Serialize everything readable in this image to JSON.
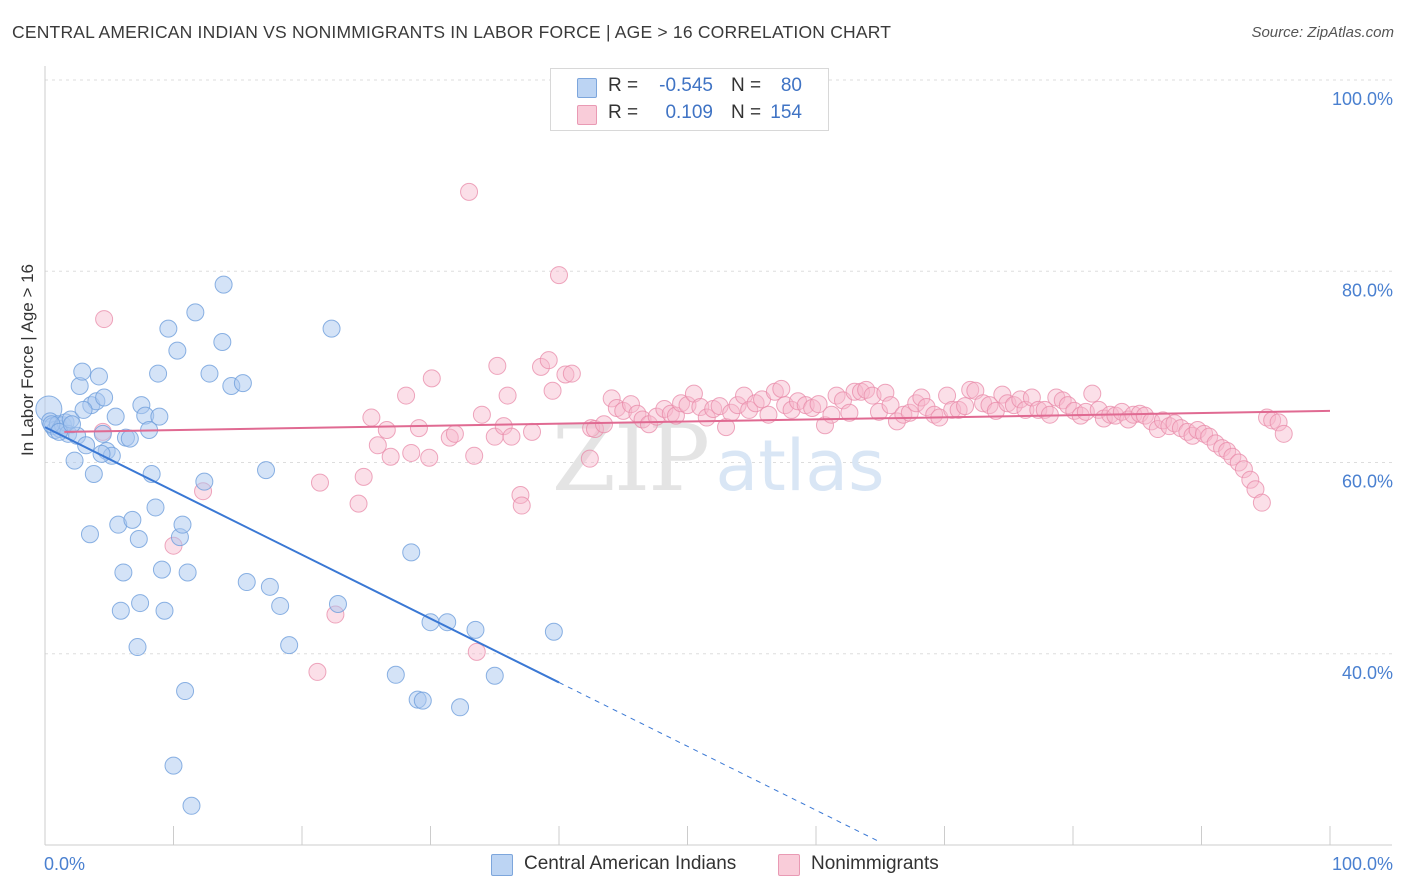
{
  "header": {
    "title": "CENTRAL AMERICAN INDIAN VS NONIMMIGRANTS IN LABOR FORCE | AGE > 16 CORRELATION CHART",
    "source": "Source: ZipAtlas.com"
  },
  "legend": {
    "rows": [
      {
        "r_label": "R =",
        "r_value": "-0.545",
        "n_label": "N =",
        "n_value": "80"
      },
      {
        "r_label": "R =",
        "r_value": "0.109",
        "n_label": "N =",
        "n_value": "154"
      }
    ]
  },
  "bottom_legend": [
    "Central American Indians",
    "Nonimmigrants"
  ],
  "watermark": "ZIPatlas",
  "chart_data": {
    "type": "scatter",
    "ylabel": "In Labor Force | Age > 16",
    "xlim": [
      0,
      100
    ],
    "ylim": [
      20,
      100
    ],
    "x_tick_labels": [
      "0.0%",
      "100.0%"
    ],
    "y_ticks": [
      40,
      60,
      80,
      100
    ],
    "y_tick_labels": [
      "40.0%",
      "60.0%",
      "80.0%",
      "100.0%"
    ],
    "grid": true,
    "colors": {
      "blue_fill": "#a9c7ef",
      "blue_stroke": "#6f9fdc",
      "blue_line": "#3a78d4",
      "pink_fill": "#f6b8cc",
      "pink_stroke": "#e889a8",
      "pink_line": "#e06a92",
      "tick_label": "#4a80d0"
    },
    "series": [
      {
        "name": "Central American Indians",
        "trend": {
          "x0": 0,
          "y0": 63.7,
          "x1": 40,
          "y1": 37.0,
          "x_dash_end": 65,
          "y_dash_end": 20.3
        },
        "points": [
          [
            0.3,
            65.6
          ],
          [
            0.4,
            64.3
          ],
          [
            0.6,
            63.8
          ],
          [
            0.8,
            63.4
          ],
          [
            1.0,
            64.0
          ],
          [
            1.2,
            63.5
          ],
          [
            1.4,
            63.9
          ],
          [
            1.6,
            64.2
          ],
          [
            1.8,
            63.0
          ],
          [
            2.0,
            64.5
          ],
          [
            2.3,
            60.2
          ],
          [
            2.5,
            62.8
          ],
          [
            2.7,
            68.0
          ],
          [
            2.9,
            69.5
          ],
          [
            3.2,
            61.8
          ],
          [
            3.5,
            52.5
          ],
          [
            3.6,
            66.0
          ],
          [
            3.8,
            58.8
          ],
          [
            4.0,
            66.4
          ],
          [
            4.2,
            69.0
          ],
          [
            4.5,
            63.0
          ],
          [
            4.6,
            66.8
          ],
          [
            4.8,
            61.2
          ],
          [
            5.2,
            60.7
          ],
          [
            5.5,
            64.8
          ],
          [
            5.7,
            53.5
          ],
          [
            5.9,
            44.5
          ],
          [
            6.1,
            48.5
          ],
          [
            6.3,
            62.6
          ],
          [
            6.6,
            62.5
          ],
          [
            6.8,
            54.0
          ],
          [
            7.2,
            40.7
          ],
          [
            7.3,
            52.0
          ],
          [
            7.4,
            45.3
          ],
          [
            7.5,
            66.0
          ],
          [
            7.8,
            64.9
          ],
          [
            8.1,
            63.4
          ],
          [
            8.3,
            58.8
          ],
          [
            8.6,
            55.3
          ],
          [
            8.8,
            69.3
          ],
          [
            8.9,
            64.8
          ],
          [
            9.1,
            48.8
          ],
          [
            9.3,
            44.5
          ],
          [
            9.6,
            74.0
          ],
          [
            10.0,
            28.3
          ],
          [
            10.3,
            71.7
          ],
          [
            10.5,
            52.2
          ],
          [
            10.7,
            53.5
          ],
          [
            10.9,
            36.1
          ],
          [
            11.1,
            48.5
          ],
          [
            11.4,
            24.1
          ],
          [
            11.7,
            75.7
          ],
          [
            12.4,
            58.0
          ],
          [
            12.8,
            69.3
          ],
          [
            13.8,
            72.6
          ],
          [
            13.9,
            78.6
          ],
          [
            14.5,
            68.0
          ],
          [
            15.4,
            68.3
          ],
          [
            15.7,
            47.5
          ],
          [
            17.2,
            59.2
          ],
          [
            17.5,
            47.0
          ],
          [
            18.3,
            45.0
          ],
          [
            19.0,
            40.9
          ],
          [
            22.3,
            74.0
          ],
          [
            22.8,
            45.2
          ],
          [
            27.3,
            37.8
          ],
          [
            28.5,
            50.6
          ],
          [
            29.0,
            35.2
          ],
          [
            29.4,
            35.1
          ],
          [
            30.0,
            43.3
          ],
          [
            31.3,
            43.3
          ],
          [
            32.3,
            34.4
          ],
          [
            33.5,
            42.5
          ],
          [
            35.0,
            37.7
          ],
          [
            39.6,
            42.3
          ],
          [
            0.5,
            64.0
          ],
          [
            1.1,
            63.2
          ],
          [
            2.1,
            64.0
          ],
          [
            3.0,
            65.5
          ],
          [
            4.4,
            60.9
          ]
        ]
      },
      {
        "name": "Nonimmigrants",
        "trend": {
          "x0": 1.5,
          "y0": 63.2,
          "x1": 100,
          "y1": 65.4
        },
        "points": [
          [
            4.5,
            63.2
          ],
          [
            10.0,
            51.3
          ],
          [
            12.3,
            57.0
          ],
          [
            4.6,
            75.0
          ],
          [
            21.4,
            57.9
          ],
          [
            22.6,
            44.1
          ],
          [
            21.2,
            38.1
          ],
          [
            24.4,
            55.7
          ],
          [
            24.8,
            58.5
          ],
          [
            25.4,
            64.7
          ],
          [
            25.9,
            61.8
          ],
          [
            26.6,
            63.4
          ],
          [
            26.9,
            60.6
          ],
          [
            28.1,
            67.0
          ],
          [
            28.5,
            61.0
          ],
          [
            29.1,
            63.6
          ],
          [
            29.9,
            60.5
          ],
          [
            30.1,
            68.8
          ],
          [
            31.5,
            62.6
          ],
          [
            31.9,
            63.0
          ],
          [
            33.0,
            88.3
          ],
          [
            33.4,
            60.7
          ],
          [
            33.6,
            40.2
          ],
          [
            34.0,
            65.0
          ],
          [
            35.0,
            62.7
          ],
          [
            35.2,
            70.1
          ],
          [
            35.7,
            63.8
          ],
          [
            36.0,
            67.0
          ],
          [
            36.3,
            62.7
          ],
          [
            37.0,
            56.6
          ],
          [
            37.1,
            55.5
          ],
          [
            37.9,
            63.2
          ],
          [
            38.6,
            70.0
          ],
          [
            39.2,
            70.7
          ],
          [
            39.5,
            67.5
          ],
          [
            40.0,
            79.6
          ],
          [
            40.5,
            69.2
          ],
          [
            41.0,
            69.3
          ],
          [
            42.4,
            60.4
          ],
          [
            42.5,
            63.6
          ],
          [
            42.8,
            63.5
          ],
          [
            43.5,
            64.0
          ],
          [
            44.1,
            66.7
          ],
          [
            44.5,
            65.7
          ],
          [
            45.0,
            65.4
          ],
          [
            45.6,
            66.1
          ],
          [
            46.1,
            65.1
          ],
          [
            46.5,
            64.5
          ],
          [
            47.0,
            64.0
          ],
          [
            47.6,
            64.8
          ],
          [
            48.2,
            65.6
          ],
          [
            48.7,
            65.1
          ],
          [
            49.1,
            64.9
          ],
          [
            49.5,
            66.2
          ],
          [
            50.0,
            66.0
          ],
          [
            50.5,
            67.2
          ],
          [
            51.0,
            65.8
          ],
          [
            51.5,
            64.7
          ],
          [
            52.0,
            65.6
          ],
          [
            52.5,
            65.9
          ],
          [
            53.0,
            63.7
          ],
          [
            53.4,
            65.2
          ],
          [
            53.9,
            66.0
          ],
          [
            54.4,
            67.0
          ],
          [
            54.8,
            65.5
          ],
          [
            55.3,
            66.2
          ],
          [
            55.8,
            66.6
          ],
          [
            56.3,
            65.0
          ],
          [
            56.8,
            67.4
          ],
          [
            57.3,
            67.7
          ],
          [
            57.6,
            66.0
          ],
          [
            58.1,
            65.5
          ],
          [
            58.6,
            66.4
          ],
          [
            59.2,
            66.0
          ],
          [
            59.7,
            65.7
          ],
          [
            60.2,
            66.1
          ],
          [
            60.7,
            63.9
          ],
          [
            61.2,
            65.0
          ],
          [
            61.6,
            67.0
          ],
          [
            62.1,
            66.5
          ],
          [
            62.6,
            65.2
          ],
          [
            63.0,
            67.4
          ],
          [
            63.5,
            67.4
          ],
          [
            63.9,
            67.6
          ],
          [
            64.4,
            67.0
          ],
          [
            64.9,
            65.3
          ],
          [
            65.4,
            67.3
          ],
          [
            65.8,
            66.0
          ],
          [
            66.3,
            64.3
          ],
          [
            66.8,
            65.0
          ],
          [
            67.3,
            65.2
          ],
          [
            67.8,
            66.2
          ],
          [
            68.2,
            66.8
          ],
          [
            68.6,
            65.8
          ],
          [
            69.2,
            65.0
          ],
          [
            69.6,
            64.7
          ],
          [
            70.2,
            67.0
          ],
          [
            70.6,
            65.5
          ],
          [
            71.1,
            65.5
          ],
          [
            71.6,
            65.9
          ],
          [
            72.0,
            67.6
          ],
          [
            72.4,
            67.5
          ],
          [
            73.0,
            66.2
          ],
          [
            73.5,
            66.0
          ],
          [
            74.0,
            65.4
          ],
          [
            74.5,
            67.1
          ],
          [
            74.9,
            66.2
          ],
          [
            75.4,
            66.0
          ],
          [
            75.9,
            66.6
          ],
          [
            76.3,
            65.5
          ],
          [
            76.8,
            66.8
          ],
          [
            77.3,
            65.5
          ],
          [
            77.8,
            65.5
          ],
          [
            78.2,
            65.0
          ],
          [
            78.7,
            66.8
          ],
          [
            79.2,
            66.5
          ],
          [
            79.6,
            66.0
          ],
          [
            80.1,
            65.4
          ],
          [
            80.6,
            64.9
          ],
          [
            81.0,
            65.3
          ],
          [
            81.5,
            67.2
          ],
          [
            82.0,
            65.5
          ],
          [
            82.4,
            64.6
          ],
          [
            82.9,
            65.0
          ],
          [
            83.3,
            64.9
          ],
          [
            83.8,
            65.3
          ],
          [
            84.3,
            64.5
          ],
          [
            84.7,
            65.0
          ],
          [
            85.2,
            65.1
          ],
          [
            85.6,
            64.9
          ],
          [
            86.1,
            64.3
          ],
          [
            86.6,
            63.5
          ],
          [
            87.0,
            64.4
          ],
          [
            87.5,
            63.8
          ],
          [
            87.9,
            64.1
          ],
          [
            88.4,
            63.6
          ],
          [
            88.9,
            63.2
          ],
          [
            89.3,
            62.8
          ],
          [
            89.7,
            63.4
          ],
          [
            90.2,
            63.0
          ],
          [
            90.6,
            62.7
          ],
          [
            91.1,
            62.0
          ],
          [
            91.6,
            61.5
          ],
          [
            92.0,
            61.2
          ],
          [
            92.4,
            60.6
          ],
          [
            92.9,
            60.0
          ],
          [
            93.3,
            59.3
          ],
          [
            93.8,
            58.2
          ],
          [
            94.2,
            57.2
          ],
          [
            94.7,
            55.8
          ],
          [
            95.1,
            64.7
          ],
          [
            95.5,
            64.4
          ],
          [
            96.0,
            64.2
          ],
          [
            96.4,
            63.0
          ]
        ]
      }
    ]
  }
}
